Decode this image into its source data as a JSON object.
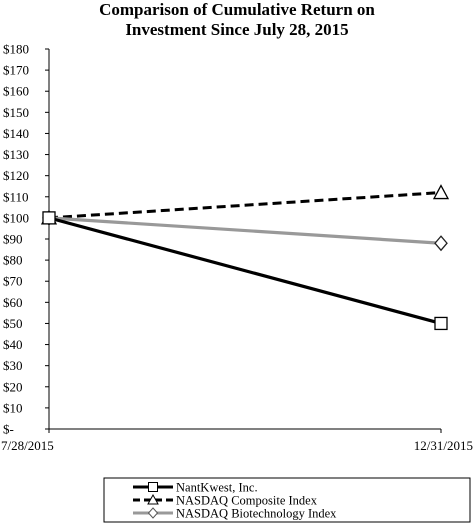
{
  "chart_data": {
    "type": "line",
    "title": [
      "Comparison of Cumulative Return on",
      "Investment Since July 28, 2015"
    ],
    "categories": [
      "7/28/2015",
      "12/31/2015"
    ],
    "series": [
      {
        "name": "NantKwest, Inc.",
        "values": [
          100,
          50
        ],
        "color": "#000000",
        "style": "solid",
        "marker": "square"
      },
      {
        "name": "NASDAQ Composite Index",
        "values": [
          100,
          112
        ],
        "color": "#000000",
        "style": "dashed",
        "marker": "triangle"
      },
      {
        "name": "NASDAQ Biotechnology Index",
        "values": [
          100,
          88
        ],
        "color": "#999999",
        "style": "solid",
        "marker": "diamond"
      }
    ],
    "ylim": [
      0,
      180
    ],
    "yticks": [
      0,
      10,
      20,
      30,
      40,
      50,
      60,
      70,
      80,
      90,
      100,
      110,
      120,
      130,
      140,
      150,
      160,
      170,
      180
    ],
    "ytick_labels": [
      "$-",
      "$10",
      "$20",
      "$30",
      "$40",
      "$50",
      "$60",
      "$70",
      "$80",
      "$90",
      "$100",
      "$110",
      "$120",
      "$130",
      "$140",
      "$150",
      "$160",
      "$170",
      "$180"
    ],
    "grid": false,
    "legend_position": "bottom"
  }
}
